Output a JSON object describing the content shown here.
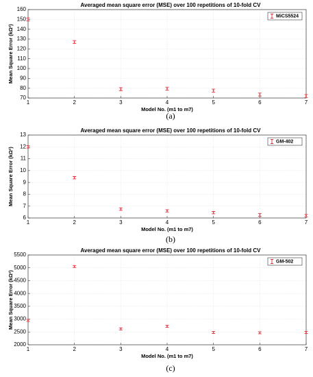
{
  "chart_data": [
    {
      "type": "errorbar",
      "title": "Averaged mean square error (MSE) over 100 repetitions of 10-fold CV",
      "xlabel": "Model No. (m1 to m7)",
      "ylabel": "Mean Square Error (kΩ²)",
      "caption": "(a)",
      "x": [
        1,
        2,
        3,
        4,
        5,
        6,
        7
      ],
      "series": [
        {
          "name": "MiCS5524",
          "color": "#e0303a",
          "values": [
            150,
            127,
            79,
            79.5,
            77.5,
            73.5,
            72
          ],
          "errors": [
            1.5,
            1.5,
            1.5,
            1.5,
            1.5,
            1.5,
            1.5
          ]
        }
      ],
      "xlim": [
        1,
        7
      ],
      "xticks": [
        1,
        2,
        3,
        4,
        5,
        6,
        7
      ],
      "ylim": [
        70,
        160
      ],
      "yticks": [
        70,
        80,
        90,
        100,
        110,
        120,
        130,
        140,
        150,
        160
      ],
      "grid": true,
      "legend": "northeast"
    },
    {
      "type": "errorbar",
      "title": "Averaged mean square error (MSE) over 100 repetitions of 10-fold CV",
      "xlabel": "Model No. (m1 to m7)",
      "ylabel": "Mean Square Error (kΩ²)",
      "caption": "(b)",
      "x": [
        1,
        2,
        3,
        4,
        5,
        6,
        7
      ],
      "series": [
        {
          "name": "GM-402",
          "color": "#e0303a",
          "values": [
            12,
            9.4,
            6.75,
            6.6,
            6.45,
            6.25,
            6.2
          ],
          "errors": [
            0.1,
            0.1,
            0.1,
            0.1,
            0.1,
            0.12,
            0.1
          ]
        }
      ],
      "xlim": [
        1,
        7
      ],
      "xticks": [
        1,
        2,
        3,
        4,
        5,
        6,
        7
      ],
      "ylim": [
        6,
        13
      ],
      "yticks": [
        6,
        7,
        8,
        9,
        10,
        11,
        12,
        13
      ],
      "grid": true,
      "legend": "northeast"
    },
    {
      "type": "errorbar",
      "title": "Averaged mean square error (MSE) over 100 repetitions of 10-fold CV",
      "xlabel": "Model No. (m1 to m7)",
      "ylabel": "Mean Square Error (kΩ²)",
      "caption": "(c)",
      "x": [
        1,
        2,
        3,
        4,
        5,
        6,
        7
      ],
      "series": [
        {
          "name": "GM-502",
          "color": "#e0303a",
          "values": [
            2950,
            5050,
            2620,
            2720,
            2480,
            2470,
            2480
          ],
          "errors": [
            40,
            40,
            40,
            40,
            40,
            40,
            40
          ]
        }
      ],
      "xlim": [
        1,
        7
      ],
      "xticks": [
        1,
        2,
        3,
        4,
        5,
        6,
        7
      ],
      "ylim": [
        2000,
        5500
      ],
      "yticks": [
        2000,
        2500,
        3000,
        3500,
        4000,
        4500,
        5000,
        5500
      ],
      "grid": true,
      "legend": "northeast"
    }
  ]
}
